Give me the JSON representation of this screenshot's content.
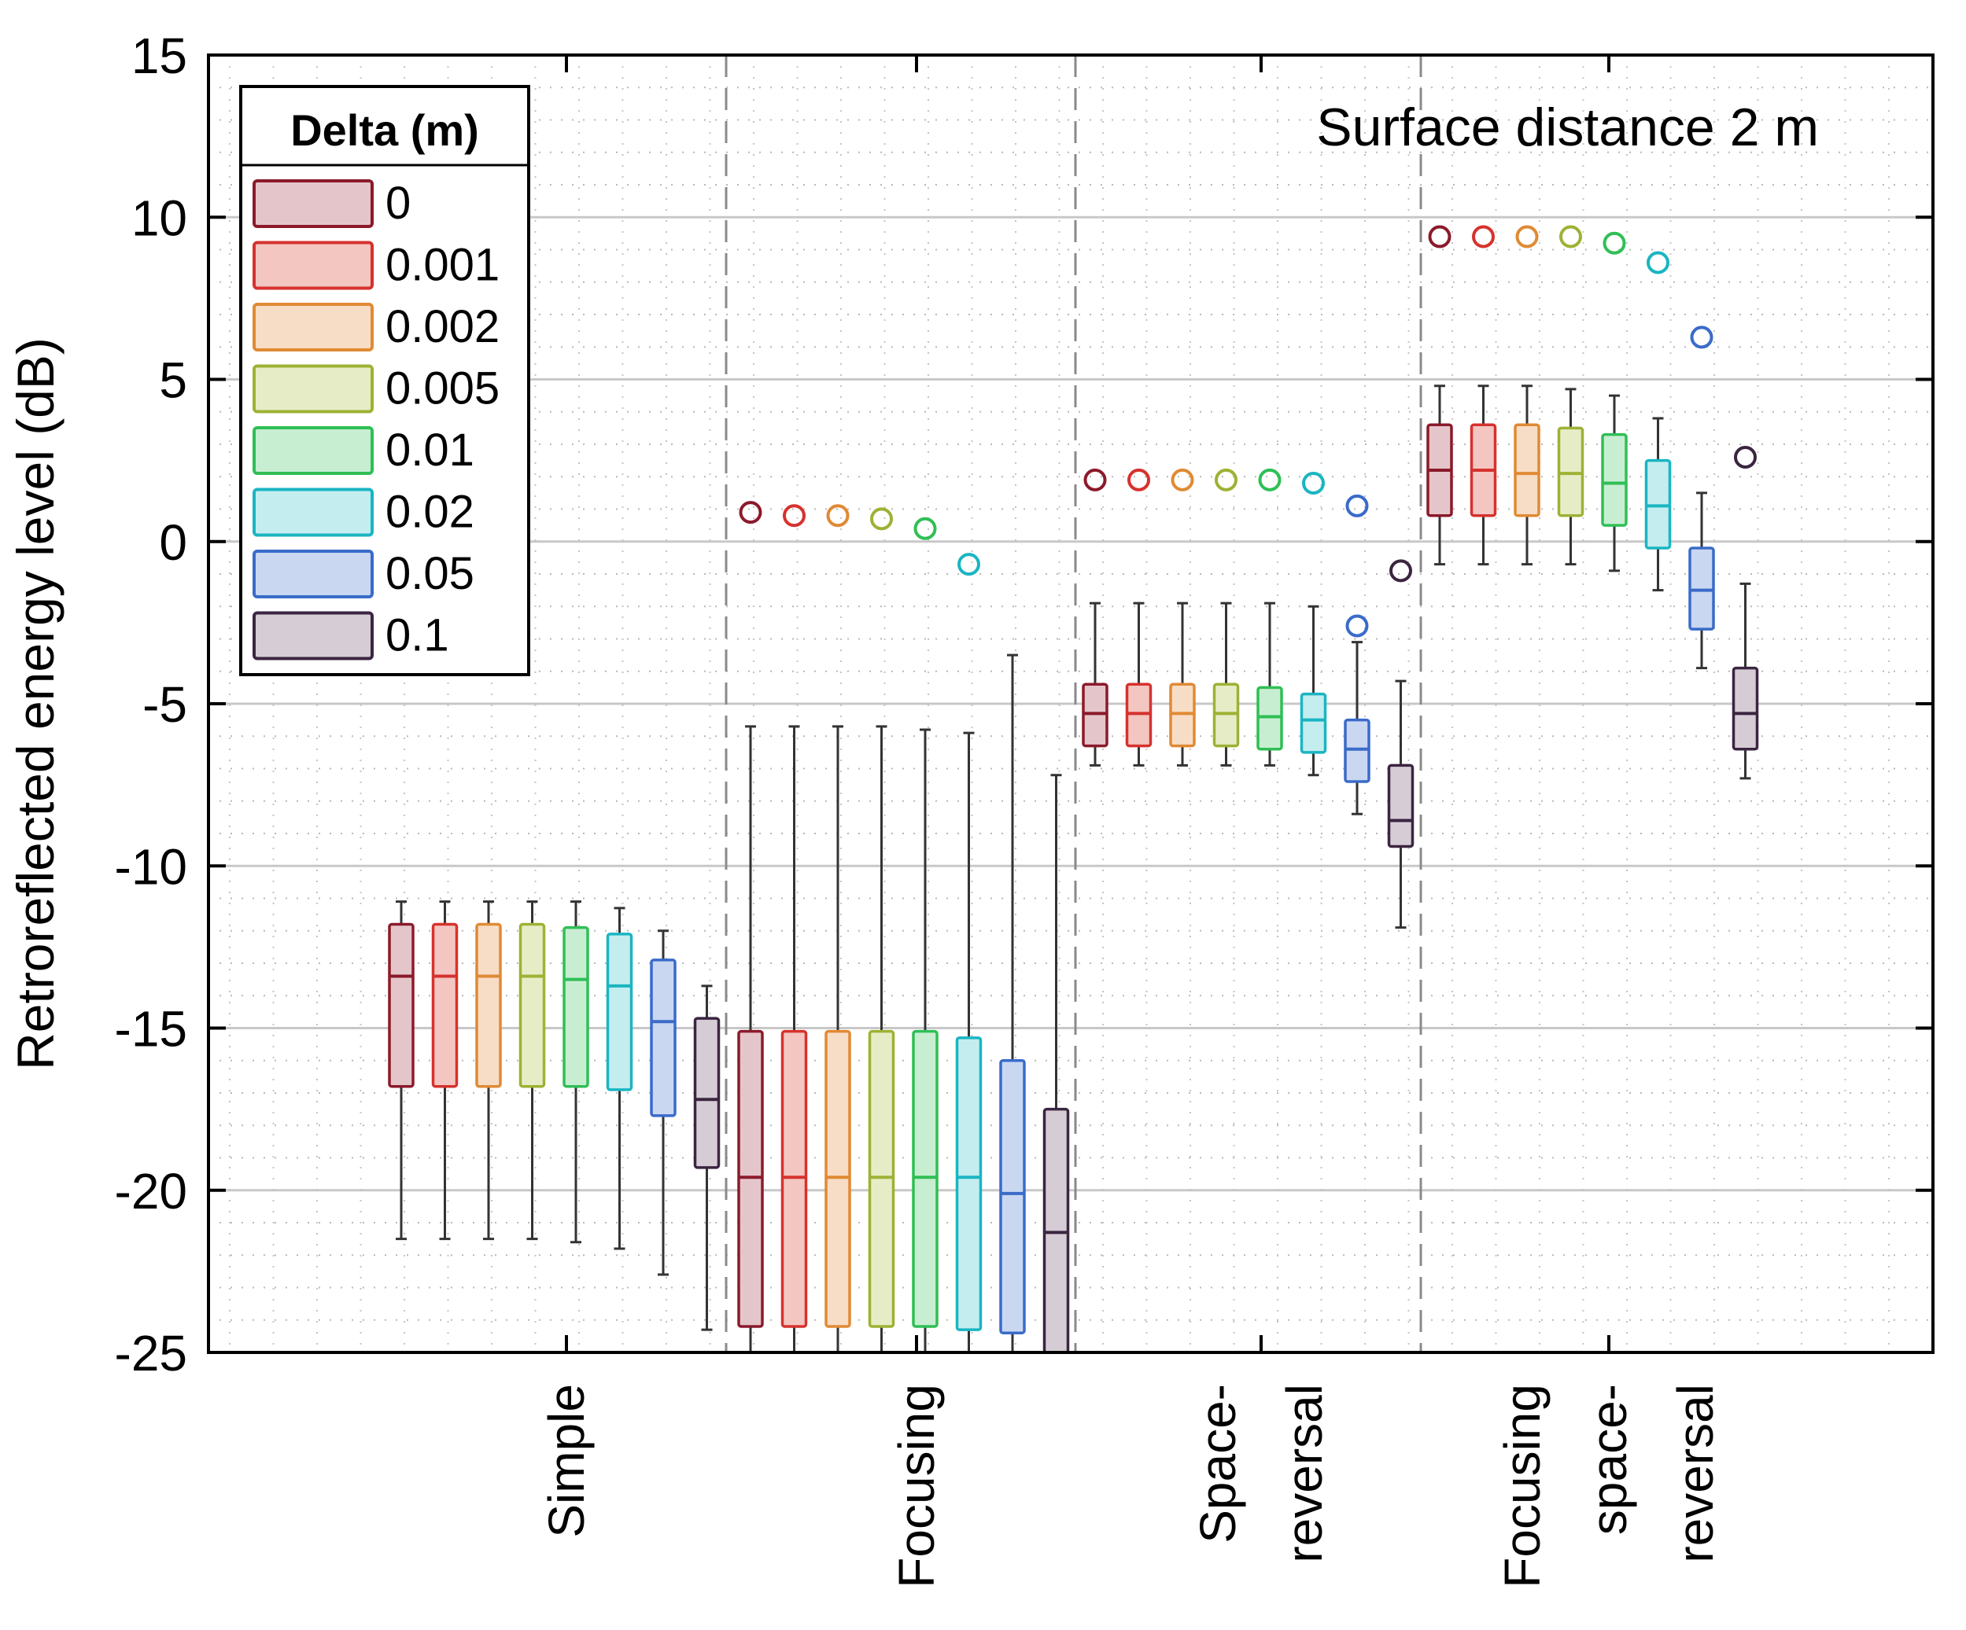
{
  "chart_data": {
    "type": "box",
    "title": "Surface distance 2 m",
    "ylabel": "Retroreflected energy level (dB)",
    "ylim": [
      -25,
      15
    ],
    "yticks": [
      15,
      10,
      5,
      0,
      -5,
      -10,
      -15,
      -20,
      -25
    ],
    "grid": true,
    "categories": [
      {
        "lines": [
          "Simple"
        ]
      },
      {
        "lines": [
          "Focusing"
        ]
      },
      {
        "lines": [
          "Space-",
          "reversal"
        ]
      },
      {
        "lines": [
          "Focusing",
          "space-",
          "reversal"
        ]
      }
    ],
    "legend": {
      "title": "Delta (m)",
      "position": "top-left",
      "entries": [
        "0",
        "0.001",
        "0.002",
        "0.005",
        "0.01",
        "0.02",
        "0.05",
        "0.1"
      ],
      "colors": [
        "#8B1A2B",
        "#D6322E",
        "#E08A34",
        "#9DB234",
        "#2FBF55",
        "#1AB5C2",
        "#3A6BC9",
        "#3B2540"
      ],
      "fills": [
        "#E4C6CA",
        "#F3C6C1",
        "#F8DDC6",
        "#E6EDC6",
        "#C8EED2",
        "#C4EDEF",
        "#C9D7F1",
        "#D6CCD6"
      ]
    },
    "series": [
      {
        "group": "Simple",
        "delta": "0",
        "whisker_low": -21.5,
        "q1": -16.8,
        "median": -13.4,
        "q3": -11.8,
        "whisker_high": -11.1,
        "outlier": null
      },
      {
        "group": "Simple",
        "delta": "0.001",
        "whisker_low": -21.5,
        "q1": -16.8,
        "median": -13.4,
        "q3": -11.8,
        "whisker_high": -11.1,
        "outlier": null
      },
      {
        "group": "Simple",
        "delta": "0.002",
        "whisker_low": -21.5,
        "q1": -16.8,
        "median": -13.4,
        "q3": -11.8,
        "whisker_high": -11.1,
        "outlier": null
      },
      {
        "group": "Simple",
        "delta": "0.005",
        "whisker_low": -21.5,
        "q1": -16.8,
        "median": -13.4,
        "q3": -11.8,
        "whisker_high": -11.1,
        "outlier": null
      },
      {
        "group": "Simple",
        "delta": "0.01",
        "whisker_low": -21.6,
        "q1": -16.8,
        "median": -13.5,
        "q3": -11.9,
        "whisker_high": -11.1,
        "outlier": null
      },
      {
        "group": "Simple",
        "delta": "0.02",
        "whisker_low": -21.8,
        "q1": -16.9,
        "median": -13.7,
        "q3": -12.1,
        "whisker_high": -11.3,
        "outlier": null
      },
      {
        "group": "Simple",
        "delta": "0.05",
        "whisker_low": -22.6,
        "q1": -17.7,
        "median": -14.8,
        "q3": -12.9,
        "whisker_high": -12.0,
        "outlier": null
      },
      {
        "group": "Simple",
        "delta": "0.1",
        "whisker_low": -24.3,
        "q1": -19.3,
        "median": -17.2,
        "q3": -14.7,
        "whisker_high": -13.7,
        "outlier": null
      },
      {
        "group": "Focusing",
        "delta": "0",
        "whisker_low": -25,
        "q1": -24.2,
        "median": -19.6,
        "q3": -15.1,
        "whisker_high": -5.7,
        "outlier": 0.9
      },
      {
        "group": "Focusing",
        "delta": "0.001",
        "whisker_low": -25,
        "q1": -24.2,
        "median": -19.6,
        "q3": -15.1,
        "whisker_high": -5.7,
        "outlier": 0.8
      },
      {
        "group": "Focusing",
        "delta": "0.002",
        "whisker_low": -25,
        "q1": -24.2,
        "median": -19.6,
        "q3": -15.1,
        "whisker_high": -5.7,
        "outlier": 0.8
      },
      {
        "group": "Focusing",
        "delta": "0.005",
        "whisker_low": -25,
        "q1": -24.2,
        "median": -19.6,
        "q3": -15.1,
        "whisker_high": -5.7,
        "outlier": 0.7
      },
      {
        "group": "Focusing",
        "delta": "0.01",
        "whisker_low": -25,
        "q1": -24.2,
        "median": -19.6,
        "q3": -15.1,
        "whisker_high": -5.8,
        "outlier": 0.4
      },
      {
        "group": "Focusing",
        "delta": "0.02",
        "whisker_low": -25,
        "q1": -24.3,
        "median": -19.6,
        "q3": -15.3,
        "whisker_high": -5.9,
        "outlier": -0.7
      },
      {
        "group": "Focusing",
        "delta": "0.05",
        "whisker_low": -25,
        "q1": -24.4,
        "median": -20.1,
        "q3": -16.0,
        "whisker_high": -3.5,
        "outlier": null
      },
      {
        "group": "Focusing",
        "delta": "0.1",
        "whisker_low": -25,
        "q1": -25,
        "median": -21.3,
        "q3": -17.5,
        "whisker_high": -7.2,
        "outlier": null
      },
      {
        "group": "Space-reversal",
        "delta": "0",
        "whisker_low": -6.9,
        "q1": -6.3,
        "median": -5.3,
        "q3": -4.4,
        "whisker_high": -1.9,
        "outlier": 1.9
      },
      {
        "group": "Space-reversal",
        "delta": "0.001",
        "whisker_low": -6.9,
        "q1": -6.3,
        "median": -5.3,
        "q3": -4.4,
        "whisker_high": -1.9,
        "outlier": 1.9
      },
      {
        "group": "Space-reversal",
        "delta": "0.002",
        "whisker_low": -6.9,
        "q1": -6.3,
        "median": -5.3,
        "q3": -4.4,
        "whisker_high": -1.9,
        "outlier": 1.9
      },
      {
        "group": "Space-reversal",
        "delta": "0.005",
        "whisker_low": -6.9,
        "q1": -6.3,
        "median": -5.3,
        "q3": -4.4,
        "whisker_high": -1.9,
        "outlier": 1.9
      },
      {
        "group": "Space-reversal",
        "delta": "0.01",
        "whisker_low": -6.9,
        "q1": -6.4,
        "median": -5.4,
        "q3": -4.5,
        "whisker_high": -1.9,
        "outlier": 1.9
      },
      {
        "group": "Space-reversal",
        "delta": "0.02",
        "whisker_low": -7.2,
        "q1": -6.5,
        "median": -5.5,
        "q3": -4.7,
        "whisker_high": -2.0,
        "outlier": 1.8
      },
      {
        "group": "Space-reversal",
        "delta": "0.05",
        "whisker_low": -8.4,
        "q1": -7.4,
        "median": -6.4,
        "q3": -5.5,
        "whisker_high": -3.1,
        "outlier": [
          1.1,
          -2.6
        ]
      },
      {
        "group": "Space-reversal",
        "delta": "0.1",
        "whisker_low": -11.9,
        "q1": -9.4,
        "median": -8.6,
        "q3": -6.9,
        "whisker_high": -4.3,
        "outlier": -0.9
      },
      {
        "group": "Focusing space-reversal",
        "delta": "0",
        "whisker_low": -0.7,
        "q1": 0.8,
        "median": 2.2,
        "q3": 3.6,
        "whisker_high": 4.8,
        "outlier": 9.4
      },
      {
        "group": "Focusing space-reversal",
        "delta": "0.001",
        "whisker_low": -0.7,
        "q1": 0.8,
        "median": 2.2,
        "q3": 3.6,
        "whisker_high": 4.8,
        "outlier": 9.4
      },
      {
        "group": "Focusing space-reversal",
        "delta": "0.002",
        "whisker_low": -0.7,
        "q1": 0.8,
        "median": 2.1,
        "q3": 3.6,
        "whisker_high": 4.8,
        "outlier": 9.4
      },
      {
        "group": "Focusing space-reversal",
        "delta": "0.005",
        "whisker_low": -0.7,
        "q1": 0.8,
        "median": 2.1,
        "q3": 3.5,
        "whisker_high": 4.7,
        "outlier": 9.4
      },
      {
        "group": "Focusing space-reversal",
        "delta": "0.01",
        "whisker_low": -0.9,
        "q1": 0.5,
        "median": 1.8,
        "q3": 3.3,
        "whisker_high": 4.5,
        "outlier": 9.2
      },
      {
        "group": "Focusing space-reversal",
        "delta": "0.02",
        "whisker_low": -1.5,
        "q1": -0.2,
        "median": 1.1,
        "q3": 2.5,
        "whisker_high": 3.8,
        "outlier": 8.6
      },
      {
        "group": "Focusing space-reversal",
        "delta": "0.05",
        "whisker_low": -3.9,
        "q1": -2.7,
        "median": -1.5,
        "q3": -0.2,
        "whisker_high": 1.5,
        "outlier": 6.3
      },
      {
        "group": "Focusing space-reversal",
        "delta": "0.1",
        "whisker_low": -7.3,
        "q1": -6.4,
        "median": -5.3,
        "q3": -3.9,
        "whisker_high": -1.3,
        "outlier": 2.6
      }
    ]
  }
}
